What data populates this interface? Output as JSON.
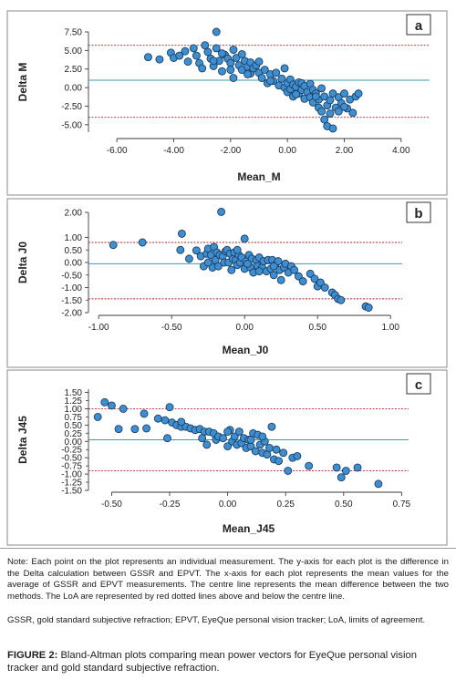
{
  "chart_data": [
    {
      "type": "scatter",
      "panel_label": "b_placeholder",
      "letter": "a",
      "xlabel": "Mean_M",
      "ylabel": "Delta M",
      "xlim": [
        -7.0,
        5.0
      ],
      "ylim": [
        -6.0,
        7.5
      ],
      "xticks": [
        "-6.00",
        "-4.00",
        "-2.00",
        "0.00",
        "2.00",
        "4.00"
      ],
      "xtick_values": [
        -6,
        -4,
        -2,
        0,
        2,
        4
      ],
      "yticks": [
        "7.50",
        "5.00",
        "2.50",
        "0.00",
        "-2.50",
        "-5.00"
      ],
      "ytick_values": [
        7.5,
        5.0,
        2.5,
        0.0,
        -2.5,
        -5.0
      ],
      "mean_line": 1.0,
      "loa_upper": 5.7,
      "loa_lower": -4.0,
      "points": [
        [
          -4.9,
          4.1
        ],
        [
          -4.5,
          3.8
        ],
        [
          -4.1,
          4.7
        ],
        [
          -4.0,
          4.0
        ],
        [
          -3.6,
          4.9
        ],
        [
          -3.5,
          3.5
        ],
        [
          -3.3,
          5.3
        ],
        [
          -3.2,
          4.3
        ],
        [
          -3.1,
          3.3
        ],
        [
          -3.0,
          2.6
        ],
        [
          -2.9,
          5.7
        ],
        [
          -2.8,
          4.8
        ],
        [
          -2.7,
          3.9
        ],
        [
          -2.6,
          2.9
        ],
        [
          -2.5,
          5.3
        ],
        [
          -2.5,
          7.5
        ],
        [
          -2.4,
          3.6
        ],
        [
          -2.3,
          2.2
        ],
        [
          -2.2,
          4.4
        ],
        [
          -2.1,
          3.9
        ],
        [
          -2.0,
          3.3
        ],
        [
          -2.0,
          2.4
        ],
        [
          -1.9,
          5.1
        ],
        [
          -1.9,
          1.3
        ],
        [
          -1.8,
          4.0
        ],
        [
          -1.7,
          3.0
        ],
        [
          -1.6,
          2.4
        ],
        [
          -1.6,
          4.5
        ],
        [
          -1.5,
          3.6
        ],
        [
          -1.4,
          2.8
        ],
        [
          -1.3,
          1.9
        ],
        [
          -1.3,
          3.4
        ],
        [
          -1.2,
          2.6
        ],
        [
          -1.1,
          3.0
        ],
        [
          -1.0,
          2.0
        ],
        [
          -0.9,
          1.3
        ],
        [
          -0.8,
          2.4
        ],
        [
          -0.7,
          0.6
        ],
        [
          -0.6,
          1.8
        ],
        [
          -0.5,
          0.9
        ],
        [
          -0.4,
          2.0
        ],
        [
          -0.3,
          0.3
        ],
        [
          -0.2,
          1.2
        ],
        [
          -0.1,
          0.0
        ],
        [
          -0.1,
          2.6
        ],
        [
          0.0,
          0.6
        ],
        [
          0.0,
          -0.6
        ],
        [
          0.1,
          1.1
        ],
        [
          0.1,
          -0.2
        ],
        [
          0.2,
          0.4
        ],
        [
          0.2,
          -1.2
        ],
        [
          0.3,
          0.1
        ],
        [
          0.4,
          0.7
        ],
        [
          0.4,
          -0.8
        ],
        [
          0.5,
          -0.3
        ],
        [
          0.5,
          0.6
        ],
        [
          0.6,
          -1.5
        ],
        [
          0.6,
          0.2
        ],
        [
          0.7,
          -0.6
        ],
        [
          0.8,
          0.5
        ],
        [
          0.8,
          -1.3
        ],
        [
          0.9,
          -0.3
        ],
        [
          0.9,
          -2.0
        ],
        [
          1.0,
          -0.8
        ],
        [
          1.1,
          -1.6
        ],
        [
          1.1,
          -2.7
        ],
        [
          1.2,
          -0.1
        ],
        [
          1.2,
          -3.2
        ],
        [
          1.3,
          -1.2
        ],
        [
          1.3,
          -4.3
        ],
        [
          1.4,
          -2.4
        ],
        [
          1.4,
          -5.2
        ],
        [
          1.5,
          -1.7
        ],
        [
          1.5,
          -3.5
        ],
        [
          1.6,
          -0.8
        ],
        [
          1.6,
          -5.5
        ],
        [
          1.7,
          -2.7
        ],
        [
          1.8,
          -1.3
        ],
        [
          1.8,
          -3.2
        ],
        [
          1.9,
          -2.1
        ],
        [
          2.0,
          -0.8
        ],
        [
          2.1,
          -2.8
        ],
        [
          2.2,
          -1.6
        ],
        [
          2.3,
          -3.4
        ],
        [
          2.4,
          -1.2
        ],
        [
          2.5,
          -0.8
        ],
        [
          2.0,
          -2.6
        ],
        [
          1.0,
          -1.2
        ],
        [
          0.3,
          -0.9
        ],
        [
          -0.6,
          0.9
        ],
        [
          -1.0,
          3.5
        ],
        [
          -1.4,
          1.8
        ],
        [
          -2.3,
          4.6
        ],
        [
          -2.6,
          3.6
        ],
        [
          -3.8,
          4.3
        ]
      ]
    },
    {
      "type": "scatter",
      "letter": "b",
      "xlabel": "Mean_J0",
      "ylabel": "Delta J0",
      "xlim": [
        -1.07,
        1.08
      ],
      "ylim": [
        -2.0,
        2.0
      ],
      "xticks": [
        "-1.00",
        "-0.50",
        "0.00",
        "0.50",
        "1.00"
      ],
      "xtick_values": [
        -1,
        -0.5,
        0,
        0.5,
        1
      ],
      "yticks": [
        "2.00",
        "1.00",
        "0.00",
        "-1.00",
        "-2.00"
      ],
      "ytick_values": [
        2,
        1,
        0,
        -1,
        -2
      ],
      "yticks_minor": [
        "0.50",
        "-0.50",
        "-1.50"
      ],
      "ytick_minor_values": [
        0.5,
        -0.5,
        -1.5
      ],
      "mean_line": -0.05,
      "loa_upper": 0.8,
      "loa_lower": -1.45,
      "points": [
        [
          -0.9,
          0.7
        ],
        [
          -0.7,
          0.8
        ],
        [
          -0.44,
          0.5
        ],
        [
          -0.43,
          1.15
        ],
        [
          -0.38,
          0.15
        ],
        [
          -0.33,
          0.48
        ],
        [
          -0.3,
          0.25
        ],
        [
          -0.28,
          -0.15
        ],
        [
          -0.26,
          0.35
        ],
        [
          -0.25,
          0.55
        ],
        [
          -0.23,
          0.3
        ],
        [
          -0.22,
          -0.2
        ],
        [
          -0.21,
          0.62
        ],
        [
          -0.2,
          0.1
        ],
        [
          -0.19,
          0.4
        ],
        [
          -0.18,
          -0.15
        ],
        [
          -0.17,
          0.3
        ],
        [
          -0.16,
          2.02
        ],
        [
          -0.15,
          0.25
        ],
        [
          -0.14,
          0.0
        ],
        [
          -0.13,
          0.45
        ],
        [
          -0.12,
          0.5
        ],
        [
          -0.11,
          0.0
        ],
        [
          -0.1,
          0.35
        ],
        [
          -0.09,
          -0.3
        ],
        [
          -0.08,
          0.15
        ],
        [
          -0.07,
          0.4
        ],
        [
          -0.06,
          0.1
        ],
        [
          -0.05,
          -0.1
        ],
        [
          -0.04,
          0.3
        ],
        [
          -0.03,
          0.0
        ],
        [
          -0.02,
          0.2
        ],
        [
          0.0,
          0.95
        ],
        [
          0.0,
          -0.25
        ],
        [
          0.01,
          0.05
        ],
        [
          0.03,
          0.3
        ],
        [
          0.04,
          -0.2
        ],
        [
          0.05,
          0.15
        ],
        [
          0.06,
          -0.4
        ],
        [
          0.08,
          0.1
        ],
        [
          0.09,
          -0.15
        ],
        [
          0.1,
          0.2
        ],
        [
          0.12,
          -0.2
        ],
        [
          0.13,
          0.05
        ],
        [
          0.15,
          -0.35
        ],
        [
          0.16,
          0.1
        ],
        [
          0.18,
          -0.25
        ],
        [
          0.19,
          0.1
        ],
        [
          0.2,
          -0.5
        ],
        [
          0.21,
          -0.1
        ],
        [
          0.23,
          0.05
        ],
        [
          0.24,
          -0.3
        ],
        [
          0.25,
          -0.7
        ],
        [
          0.27,
          -0.2
        ],
        [
          0.28,
          -0.05
        ],
        [
          0.3,
          -0.4
        ],
        [
          0.32,
          -0.15
        ],
        [
          0.34,
          -0.3
        ],
        [
          0.37,
          -0.55
        ],
        [
          0.4,
          -0.75
        ],
        [
          0.45,
          -0.45
        ],
        [
          0.48,
          -0.65
        ],
        [
          0.5,
          -0.95
        ],
        [
          0.52,
          -0.8
        ],
        [
          0.55,
          -1.0
        ],
        [
          0.6,
          -1.2
        ],
        [
          0.62,
          -1.3
        ],
        [
          0.64,
          -1.45
        ],
        [
          0.66,
          -1.5
        ],
        [
          0.83,
          -1.75
        ],
        [
          0.85,
          -1.8
        ],
        [
          -0.05,
          0.5
        ],
        [
          0.02,
          -0.05
        ],
        [
          0.1,
          -0.35
        ],
        [
          0.2,
          -0.15
        ],
        [
          -0.25,
          0.0
        ]
      ]
    },
    {
      "type": "scatter",
      "letter": "c",
      "xlabel": "Mean_J45",
      "ylabel": "Delta J45",
      "xlim": [
        -0.6,
        0.78
      ],
      "ylim": [
        -1.5,
        1.6
      ],
      "xticks": [
        "-0.50",
        "-0.25",
        "0.00",
        "0.25",
        "0.50",
        "0.75"
      ],
      "xtick_values": [
        -0.5,
        -0.25,
        0,
        0.25,
        0.5,
        0.75
      ],
      "yticks": [
        "1.50",
        "1.00",
        "0.50",
        "0.00",
        "-0.50",
        "-1.00",
        "-1.50"
      ],
      "ytick_values": [
        1.5,
        1.0,
        0.5,
        0.0,
        -0.5,
        -1.0,
        -1.5
      ],
      "yticks_minor": [
        "1.25",
        "0.75",
        "0.25",
        "-0.25",
        "-0.75",
        "-1.25"
      ],
      "ytick_minor_values": [
        1.25,
        0.75,
        0.25,
        -0.25,
        -0.75,
        -1.25
      ],
      "mean_line": 0.05,
      "loa_upper": 1.0,
      "loa_lower": -0.9,
      "points": [
        [
          -0.56,
          0.75
        ],
        [
          -0.53,
          1.2
        ],
        [
          -0.5,
          1.1
        ],
        [
          -0.47,
          0.38
        ],
        [
          -0.45,
          1.0
        ],
        [
          -0.4,
          0.38
        ],
        [
          -0.36,
          0.85
        ],
        [
          -0.35,
          0.4
        ],
        [
          -0.3,
          0.7
        ],
        [
          -0.27,
          0.65
        ],
        [
          -0.25,
          1.05
        ],
        [
          -0.24,
          0.58
        ],
        [
          -0.22,
          0.5
        ],
        [
          -0.2,
          0.45
        ],
        [
          -0.18,
          0.45
        ],
        [
          -0.16,
          0.4
        ],
        [
          -0.14,
          0.35
        ],
        [
          -0.12,
          0.38
        ],
        [
          -0.1,
          0.3
        ],
        [
          -0.09,
          -0.1
        ],
        [
          -0.08,
          0.3
        ],
        [
          -0.06,
          0.25
        ],
        [
          -0.05,
          0.05
        ],
        [
          -0.04,
          0.15
        ],
        [
          -0.02,
          0.1
        ],
        [
          0.0,
          -0.15
        ],
        [
          0.01,
          0.35
        ],
        [
          0.02,
          0.0
        ],
        [
          0.03,
          0.15
        ],
        [
          0.04,
          -0.1
        ],
        [
          0.05,
          0.3
        ],
        [
          0.06,
          -0.05
        ],
        [
          0.07,
          0.1
        ],
        [
          0.08,
          -0.2
        ],
        [
          0.09,
          0.05
        ],
        [
          0.1,
          -0.15
        ],
        [
          0.11,
          0.25
        ],
        [
          0.12,
          -0.3
        ],
        [
          0.13,
          0.2
        ],
        [
          0.14,
          -0.1
        ],
        [
          0.15,
          -0.35
        ],
        [
          0.16,
          0.0
        ],
        [
          0.17,
          -0.4
        ],
        [
          0.18,
          -0.2
        ],
        [
          0.19,
          0.45
        ],
        [
          0.2,
          -0.55
        ],
        [
          0.21,
          -0.25
        ],
        [
          0.22,
          -0.6
        ],
        [
          0.24,
          -0.35
        ],
        [
          0.26,
          -0.9
        ],
        [
          0.28,
          -0.5
        ],
        [
          0.3,
          -0.45
        ],
        [
          0.35,
          -0.75
        ],
        [
          0.47,
          -0.8
        ],
        [
          0.49,
          -1.1
        ],
        [
          0.51,
          -0.9
        ],
        [
          0.56,
          -0.8
        ],
        [
          0.65,
          -1.3
        ],
        [
          -0.26,
          0.1
        ],
        [
          -0.11,
          0.1
        ],
        [
          0.0,
          0.3
        ],
        [
          0.1,
          0.05
        ],
        [
          0.15,
          0.15
        ],
        [
          -0.2,
          0.6
        ]
      ]
    }
  ],
  "note": "Note: Each point on the plot represents an individual measurement. The y-axis for each plot is the difference in the Delta calculation between GSSR and EPVT. The x-axis for each plot represents the mean values for the average of GSSR and EPVT measurements. The centre line represents the mean difference between the two methods. The LoA are represented by red dotted lines above and below the centre line.",
  "abbreviations": "GSSR, gold standard subjective refraction; EPVT, EyeQue personal vision tracker; LoA, limits of agreement.",
  "figure_label": "FIGURE 2:",
  "figure_caption": "Bland-Altman plots comparing mean power vectors for EyeQue personal vision tracker and gold standard subjective refraction.",
  "colors": {
    "point_fill": "#3f8fd0",
    "point_stroke": "#1b3f66",
    "mean_line": "#3a9bb0",
    "loa_line": "#b3262b",
    "axis": "#3a3a3a",
    "frame": "#6e6e6e"
  }
}
